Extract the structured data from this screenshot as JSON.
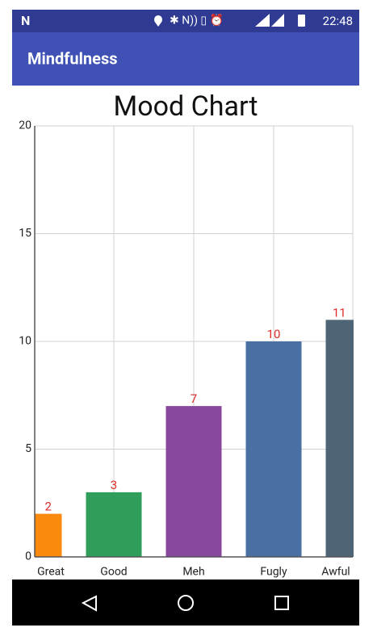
{
  "status_bar": {
    "time": "22:48"
  },
  "app_bar": {
    "title": "Mindfulness"
  },
  "chart_data": {
    "type": "bar",
    "title": "Mood Chart",
    "categories": [
      "Great",
      "Good",
      "Meh",
      "Fugly",
      "Awful"
    ],
    "values": [
      2,
      3,
      7,
      10,
      11
    ],
    "colors": [
      "#f98a0e",
      "#2f9e5a",
      "#87479c",
      "#4a6fa2",
      "#4d6577"
    ],
    "value_color": "#e02b2b",
    "ylim": [
      0,
      20
    ],
    "yticks": [
      0,
      5,
      10,
      15,
      20
    ],
    "grid": true
  }
}
